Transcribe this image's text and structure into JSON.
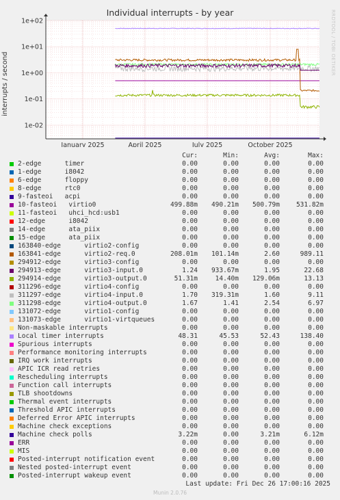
{
  "chart_data": {
    "type": "line",
    "title": "Individual interrupts - by year",
    "ylabel": "interrupts / second",
    "yscale": "log",
    "ylim": [
      0.003,
      100
    ],
    "yticks": [
      "1e+02",
      "1e+01",
      "1e+00",
      "1e-01",
      "1e-02"
    ],
    "xticks": [
      "January 2025",
      "April 2025",
      "July 2025",
      "October 2025"
    ],
    "side_label": "RRDTOOL / TOBI OETIKER",
    "columns": [
      "Cur:",
      "Min:",
      "Avg:",
      "Max:"
    ],
    "series": [
      {
        "name": "2-edge      timer",
        "color": "#00cc00",
        "cur": "0.00",
        "min": "0.00",
        "avg": "0.00",
        "max": "0.00"
      },
      {
        "name": "1-edge      i8042",
        "color": "#0066b3",
        "cur": "0.00",
        "min": "0.00",
        "avg": "0.00",
        "max": "0.00"
      },
      {
        "name": "6-edge      floppy",
        "color": "#ff8000",
        "cur": "0.00",
        "min": "0.00",
        "avg": "0.00",
        "max": "0.00"
      },
      {
        "name": "8-edge      rtc0",
        "color": "#ffcc00",
        "cur": "0.00",
        "min": "0.00",
        "avg": "0.00",
        "max": "0.00"
      },
      {
        "name": "9-fasteoi   acpi",
        "color": "#330099",
        "cur": "0.00",
        "min": "0.00",
        "avg": "0.00",
        "max": "0.00"
      },
      {
        "name": "10-fasteoi   virtio0",
        "color": "#990099",
        "cur": "499.88m",
        "min": "490.21m",
        "avg": "500.79m",
        "max": "531.82m"
      },
      {
        "name": "11-fasteoi   uhci_hcd:usb1",
        "color": "#ccff00",
        "cur": "0.00",
        "min": "0.00",
        "avg": "0.00",
        "max": "0.00"
      },
      {
        "name": "12-edge      i8042",
        "color": "#ff0000",
        "cur": "0.00",
        "min": "0.00",
        "avg": "0.00",
        "max": "0.00"
      },
      {
        "name": "14-edge      ata_piix",
        "color": "#808080",
        "cur": "0.00",
        "min": "0.00",
        "avg": "0.00",
        "max": "0.00"
      },
      {
        "name": "15-edge      ata_piix",
        "color": "#008f00",
        "cur": "0.00",
        "min": "0.00",
        "avg": "0.00",
        "max": "0.00"
      },
      {
        "name": "163840-edge      virtio2-config",
        "color": "#00487d",
        "cur": "0.00",
        "min": "0.00",
        "avg": "0.00",
        "max": "0.00"
      },
      {
        "name": "163841-edge      virtio2-req.0",
        "color": "#b35a00",
        "cur": "208.01m",
        "min": "101.14m",
        "avg": "2.60",
        "max": "989.11"
      },
      {
        "name": "294912-edge      virtio3-config",
        "color": "#b38f00",
        "cur": "0.00",
        "min": "0.00",
        "avg": "0.00",
        "max": "0.00"
      },
      {
        "name": "294913-edge      virtio3-input.0",
        "color": "#6b006b",
        "cur": "1.24",
        "min": "933.67m",
        "avg": "1.95",
        "max": "22.68"
      },
      {
        "name": "294914-edge      virtio3-output.0",
        "color": "#8fb300",
        "cur": "51.31m",
        "min": "14.40m",
        "avg": "129.06m",
        "max": "13.13"
      },
      {
        "name": "311296-edge      virtio4-config",
        "color": "#b30000",
        "cur": "0.00",
        "min": "0.00",
        "avg": "0.00",
        "max": "0.00"
      },
      {
        "name": "311297-edge      virtio4-input.0",
        "color": "#bebebe",
        "cur": "1.70",
        "min": "319.31m",
        "avg": "1.60",
        "max": "9.11"
      },
      {
        "name": "311298-edge      virtio4-output.0",
        "color": "#80ff80",
        "cur": "1.67",
        "min": "1.41",
        "avg": "2.54",
        "max": "6.97"
      },
      {
        "name": "131072-edge      virtio1-config",
        "color": "#80c9ff",
        "cur": "0.00",
        "min": "0.00",
        "avg": "0.00",
        "max": "0.00"
      },
      {
        "name": "131073-edge      virtio1-virtqueues",
        "color": "#ffc080",
        "cur": "0.00",
        "min": "0.00",
        "avg": "0.00",
        "max": "0.00"
      },
      {
        "name": "Non-maskable interrupts",
        "color": "#ffe680",
        "cur": "0.00",
        "min": "0.00",
        "avg": "0.00",
        "max": "0.00"
      },
      {
        "name": "Local timer interrupts",
        "color": "#aa80ff",
        "cur": "48.31",
        "min": "45.53",
        "avg": "52.43",
        "max": "138.40"
      },
      {
        "name": "Spurious interrupts",
        "color": "#ee00cc",
        "cur": "0.00",
        "min": "0.00",
        "avg": "0.00",
        "max": "0.00"
      },
      {
        "name": "Performance monitoring interrupts",
        "color": "#ff8080",
        "cur": "0.00",
        "min": "0.00",
        "avg": "0.00",
        "max": "0.00"
      },
      {
        "name": "IRQ work interrupts",
        "color": "#666600",
        "cur": "0.00",
        "min": "0.00",
        "avg": "0.00",
        "max": "0.00"
      },
      {
        "name": "APIC ICR read retries",
        "color": "#ffbfff",
        "cur": "0.00",
        "min": "0.00",
        "avg": "0.00",
        "max": "0.00"
      },
      {
        "name": "Rescheduling interrupts",
        "color": "#00ffcc",
        "cur": "0.00",
        "min": "0.00",
        "avg": "0.00",
        "max": "0.00"
      },
      {
        "name": "Function call interrupts",
        "color": "#cc6699",
        "cur": "0.00",
        "min": "0.00",
        "avg": "0.00",
        "max": "0.00"
      },
      {
        "name": "TLB shootdowns",
        "color": "#999900",
        "cur": "0.00",
        "min": "0.00",
        "avg": "0.00",
        "max": "0.00"
      },
      {
        "name": "Thermal event interrupts",
        "color": "#00cc00",
        "cur": "0.00",
        "min": "0.00",
        "avg": "0.00",
        "max": "0.00"
      },
      {
        "name": "Threshold APIC interrupts",
        "color": "#0066b3",
        "cur": "0.00",
        "min": "0.00",
        "avg": "0.00",
        "max": "0.00"
      },
      {
        "name": "Deferred Error APIC interrupts",
        "color": "#ff8000",
        "cur": "0.00",
        "min": "0.00",
        "avg": "0.00",
        "max": "0.00"
      },
      {
        "name": "Machine check exceptions",
        "color": "#ffcc00",
        "cur": "0.00",
        "min": "0.00",
        "avg": "0.00",
        "max": "0.00"
      },
      {
        "name": "Machine check polls",
        "color": "#330099",
        "cur": "3.22m",
        "min": "0.00",
        "avg": "3.21m",
        "max": "6.12m"
      },
      {
        "name": "ERR",
        "color": "#990099",
        "cur": "0.00",
        "min": "0.00",
        "avg": "0.00",
        "max": "0.00"
      },
      {
        "name": "MIS",
        "color": "#ccff00",
        "cur": "0.00",
        "min": "0.00",
        "avg": "0.00",
        "max": "0.00"
      },
      {
        "name": "Posted-interrupt notification event",
        "color": "#ff0000",
        "cur": "0.00",
        "min": "0.00",
        "avg": "0.00",
        "max": "0.00"
      },
      {
        "name": "Nested posted-interrupt event",
        "color": "#808080",
        "cur": "0.00",
        "min": "0.00",
        "avg": "0.00",
        "max": "0.00"
      },
      {
        "name": "Posted-interrupt wakeup event",
        "color": "#008f00",
        "cur": "0.00",
        "min": "0.00",
        "avg": "0.00",
        "max": "0.00"
      }
    ],
    "last_update": "Last update: Fri Dec 26 17:00:16 2025",
    "footer": "Munin 2.0.76"
  }
}
